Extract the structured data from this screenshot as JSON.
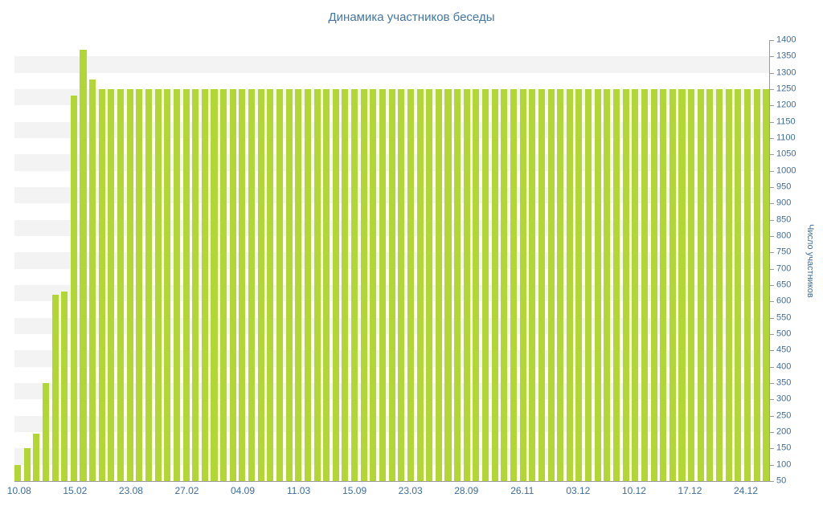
{
  "title": "Динамика участников беседы",
  "y_axis": {
    "title": "Число участников",
    "min": 50,
    "max": 1400,
    "tick_step": 50
  },
  "x_axis": {
    "labels": [
      "10.08",
      "15.02",
      "23.08",
      "27.02",
      "04.09",
      "11.03",
      "15.09",
      "23.03",
      "28.09",
      "26.11",
      "03.12",
      "10.12",
      "17.12",
      "24.12"
    ],
    "label_every": 6
  },
  "colors": {
    "bar_color": "#b2d634",
    "stripe_color": "#f3f3f3",
    "axis_line_color": "#9b9b9b",
    "axis_text_color": "#3e6e9d",
    "title_color": "#4577a6"
  },
  "chart_data": {
    "type": "bar",
    "title": "Динамика участников беседы",
    "xlabel": "",
    "ylabel": "Число участников",
    "ylim": [
      50,
      1400
    ],
    "y_tick_step": 50,
    "grid": "interlaced-horizontal-stripes",
    "legend": "none",
    "x_tick_labels": [
      "10.08",
      "15.02",
      "23.08",
      "27.02",
      "04.09",
      "11.03",
      "15.09",
      "23.03",
      "28.09",
      "26.11",
      "03.12",
      "10.12",
      "17.12",
      "24.12"
    ],
    "x_tick_label_every": 6,
    "values": [
      100,
      150,
      195,
      350,
      620,
      630,
      1230,
      1370,
      1280,
      1250,
      1250,
      1250,
      1250,
      1250,
      1250,
      1250,
      1250,
      1250,
      1250,
      1250,
      1250,
      1250,
      1250,
      1250,
      1250,
      1250,
      1250,
      1250,
      1250,
      1250,
      1250,
      1250,
      1250,
      1250,
      1250,
      1250,
      1250,
      1250,
      1250,
      1250,
      1250,
      1250,
      1250,
      1250,
      1250,
      1250,
      1250,
      1250,
      1250,
      1250,
      1250,
      1250,
      1250,
      1250,
      1250,
      1250,
      1250,
      1250,
      1250,
      1250,
      1250,
      1250,
      1250,
      1250,
      1250,
      1250,
      1250,
      1250,
      1250,
      1250,
      1250,
      1250,
      1250,
      1250,
      1250,
      1250,
      1250,
      1250,
      1250,
      1250,
      1250
    ]
  }
}
